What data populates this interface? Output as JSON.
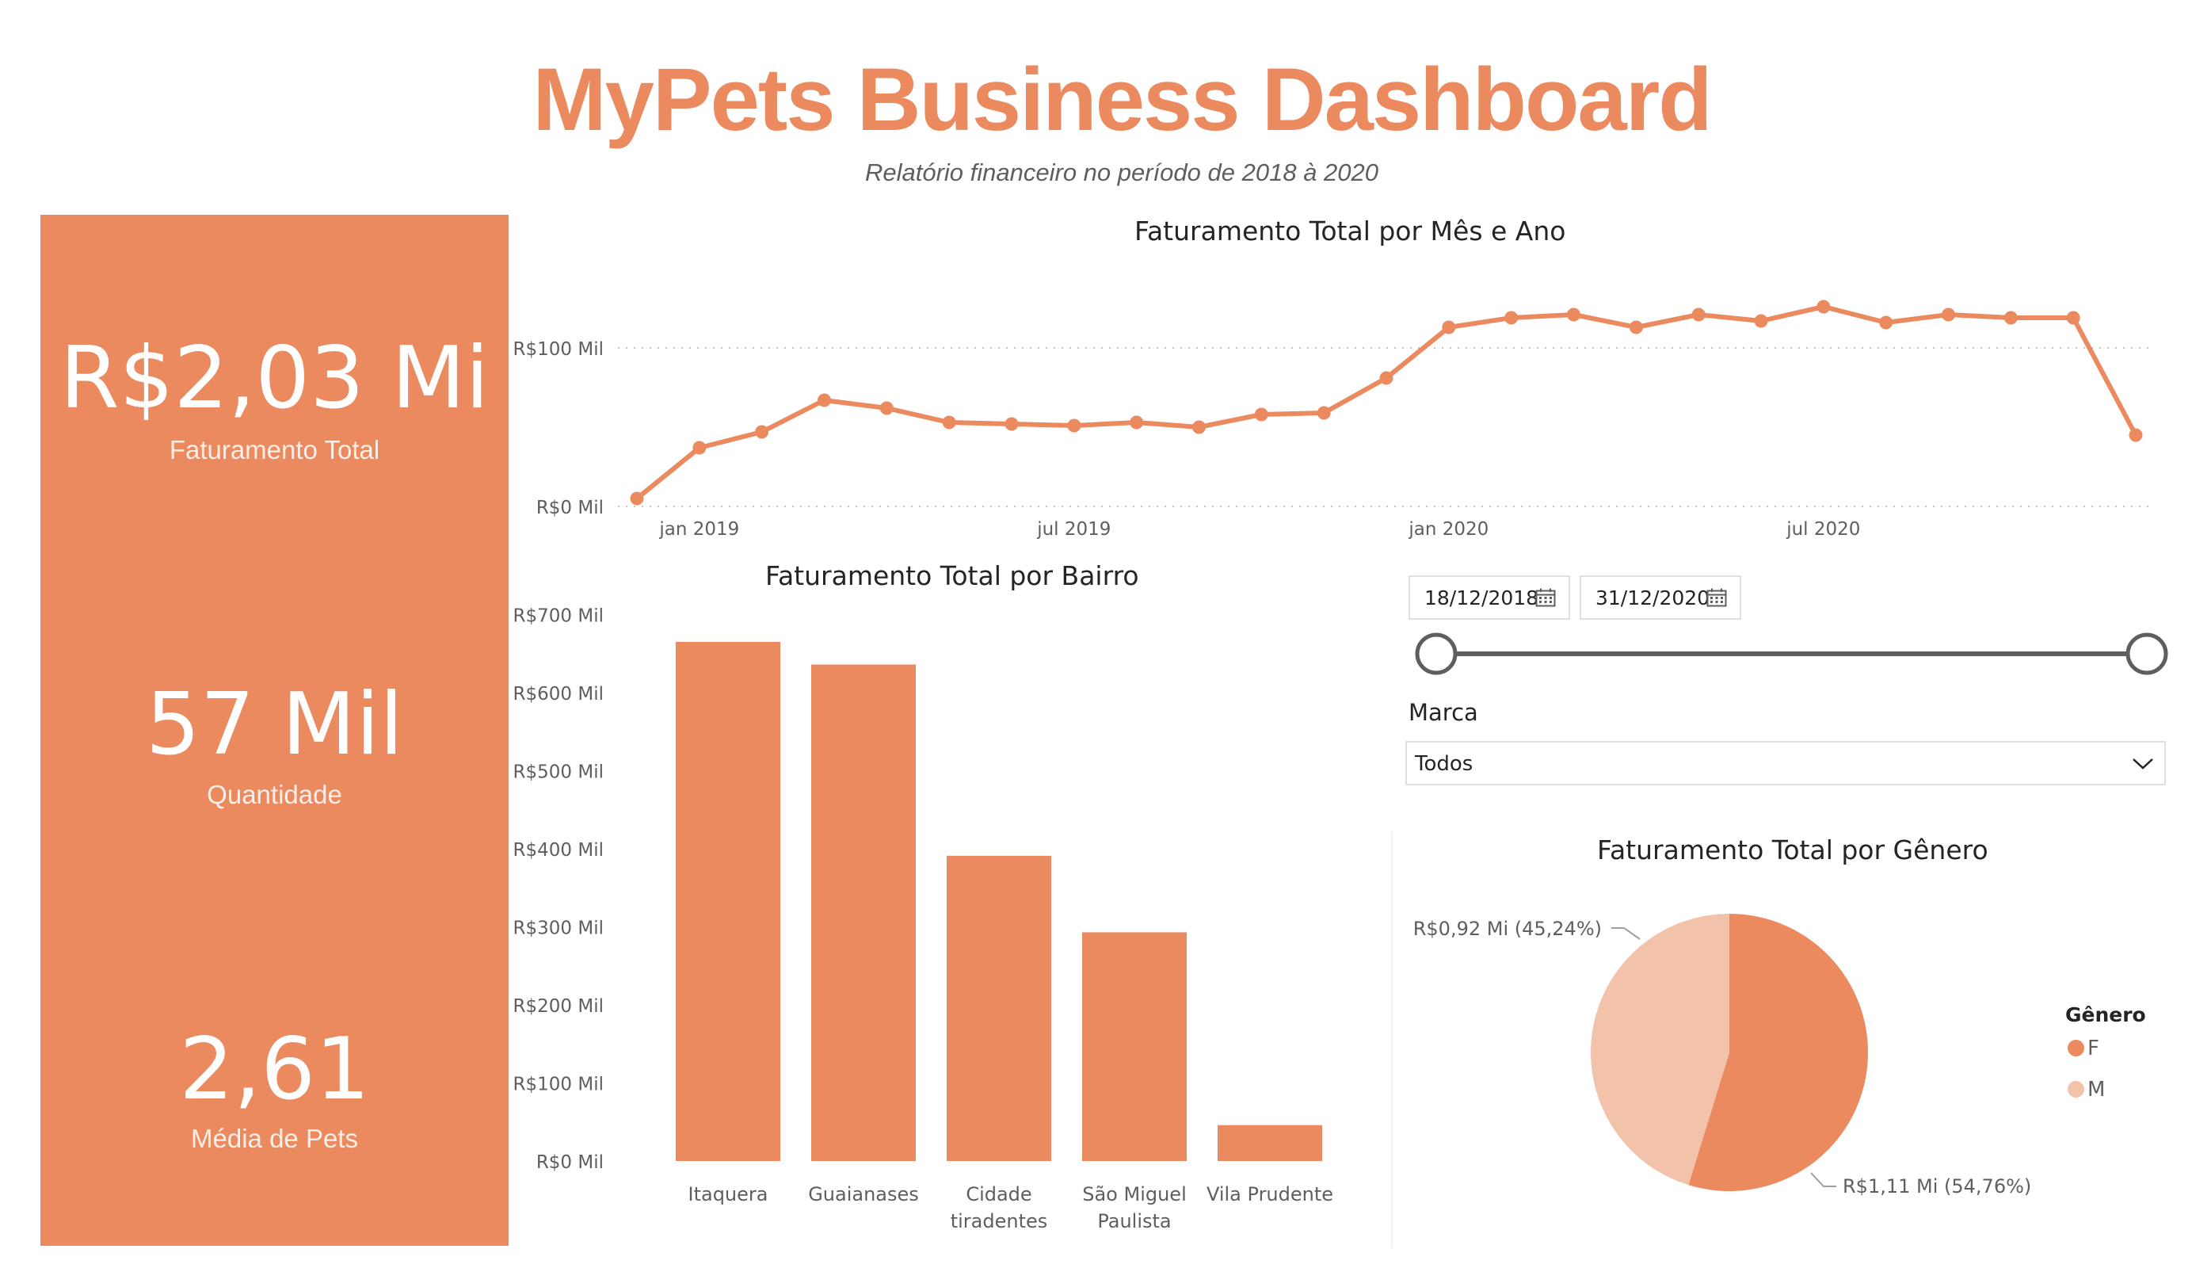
{
  "header": {
    "title": "MyPets Business Dashboard",
    "subtitle": "Relatório financeiro no período de 2018 à 2020"
  },
  "kpis": [
    {
      "value": "R$2,03 Mi",
      "label": "Faturamento Total"
    },
    {
      "value": "57 Mil",
      "label": "Quantidade"
    },
    {
      "value": "2,61",
      "label": "Média de Pets"
    }
  ],
  "colors": {
    "accent": "#EB895F",
    "accent_light": "#F2C2AB",
    "kpi_background": "#EB895F"
  },
  "slicer": {
    "start_date": "18/12/2018",
    "end_date": "31/12/2020",
    "brand_label": "Marca",
    "brand_value": "Todos"
  },
  "chart_data": [
    {
      "type": "line",
      "title": "Faturamento Total por Mês e Ano",
      "x": [
        "2018-12",
        "2019-01",
        "2019-02",
        "2019-03",
        "2019-04",
        "2019-05",
        "2019-06",
        "2019-07",
        "2019-08",
        "2019-09",
        "2019-10",
        "2019-11",
        "2019-12",
        "2020-01",
        "2020-02",
        "2020-03",
        "2020-04",
        "2020-05",
        "2020-06",
        "2020-07",
        "2020-08",
        "2020-09",
        "2020-10",
        "2020-11",
        "2020-12"
      ],
      "values": [
        5,
        37,
        47,
        67,
        62,
        53,
        52,
        51,
        53,
        50,
        58,
        59,
        81,
        113,
        119,
        121,
        113,
        121,
        117,
        126,
        116,
        121,
        119,
        119,
        45
      ],
      "y_ticks": [
        "R$0 Mil",
        "R$100 Mil"
      ],
      "x_ticks": [
        {
          "x": "2019-01",
          "label": "jan 2019"
        },
        {
          "x": "2019-07",
          "label": "jul 2019"
        },
        {
          "x": "2020-01",
          "label": "jan 2020"
        },
        {
          "x": "2020-07",
          "label": "jul 2020"
        }
      ],
      "ylim": [
        0,
        130
      ],
      "grid": "dotted"
    },
    {
      "type": "bar",
      "title": "Faturamento Total por Bairro",
      "categories": [
        "Itaquera",
        "Guaianases",
        "Cidade tiradentes",
        "São Miguel Paulista",
        "Vila Prudente"
      ],
      "category_lines": [
        [
          "Itaquera"
        ],
        [
          "Guaianases"
        ],
        [
          "Cidade",
          "tiradentes"
        ],
        [
          "São Miguel",
          "Paulista"
        ],
        [
          "Vila Prudente"
        ]
      ],
      "values": [
        665,
        636,
        391,
        293,
        46
      ],
      "y_ticks": [
        "R$0 Mil",
        "R$100 Mil",
        "R$200 Mil",
        "R$300 Mil",
        "R$400 Mil",
        "R$500 Mil",
        "R$600 Mil",
        "R$700 Mil"
      ],
      "ylim": [
        0,
        700
      ]
    },
    {
      "type": "pie",
      "title": "Faturamento Total por Gênero",
      "legend_title": "Gênero",
      "legend_position": "right",
      "slices": [
        {
          "name": "F",
          "value": 1.11,
          "percent": 54.76,
          "label": "R$1,11 Mi (54,76%)",
          "color": "#EB895F"
        },
        {
          "name": "M",
          "value": 0.92,
          "percent": 45.24,
          "label": "R$0,92 Mi (45,24%)",
          "color": "#F2C2AB"
        }
      ]
    }
  ]
}
